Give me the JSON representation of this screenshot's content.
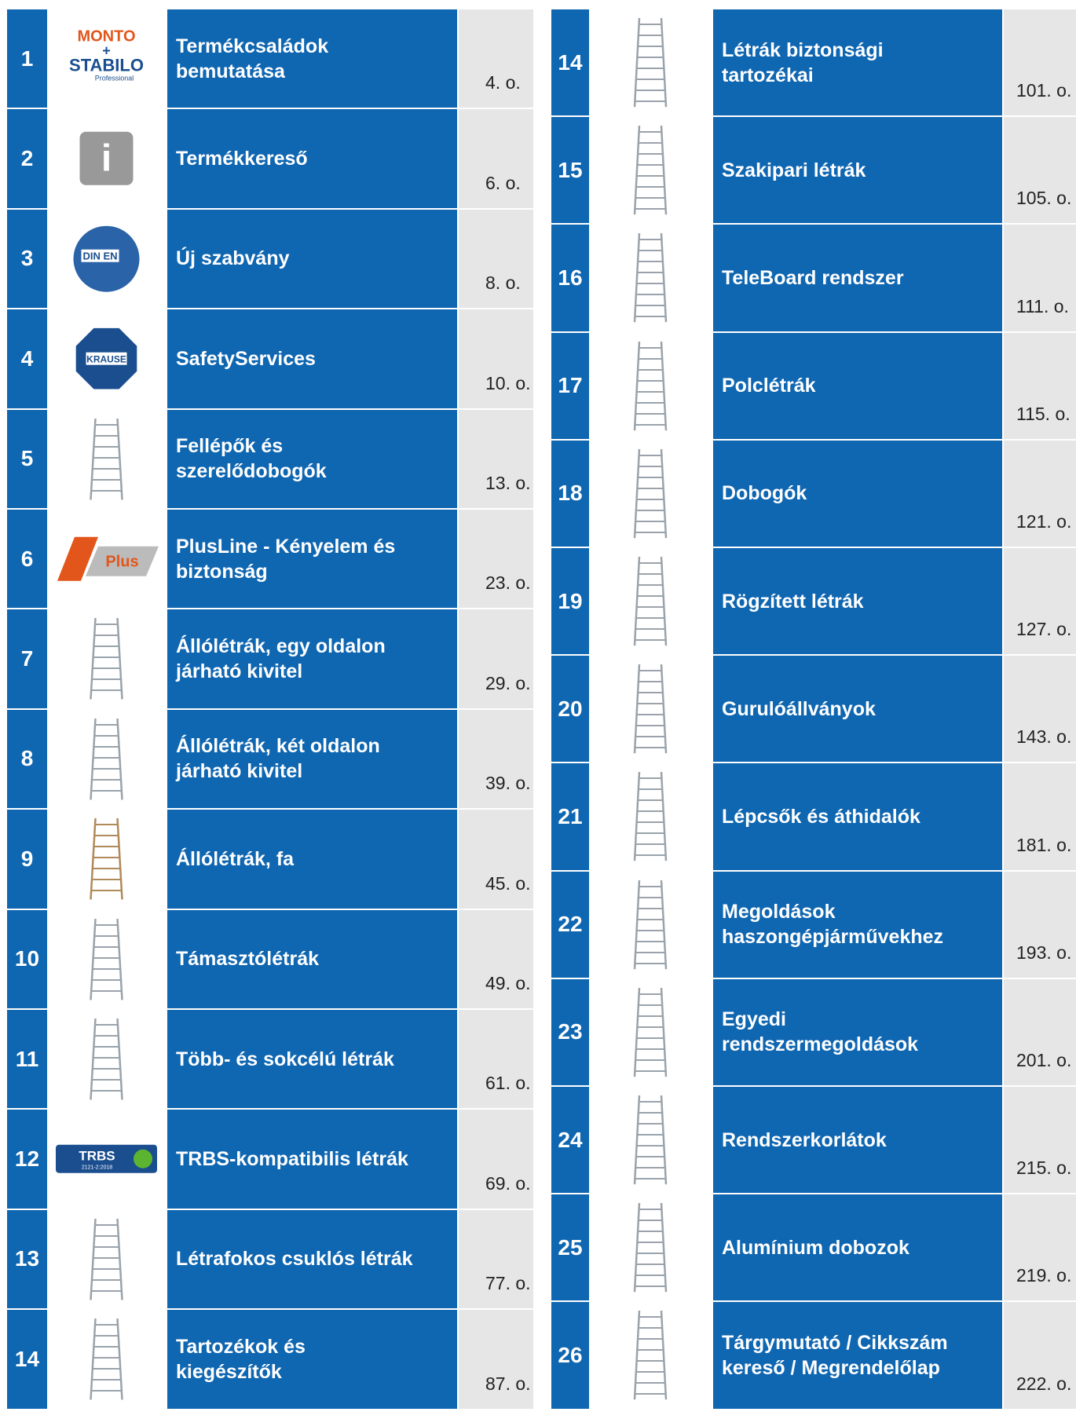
{
  "left": [
    {
      "number": "1",
      "title": [
        "Termékcsaládok",
        "bemutatása"
      ],
      "page": "4. o.",
      "logo": [
        "MONTO",
        "+",
        "STABILO",
        "Professional"
      ]
    },
    {
      "number": "2",
      "title": [
        "Termékkereső"
      ],
      "page": "6. o.",
      "logo": [
        "i"
      ]
    },
    {
      "number": "3",
      "title": [
        "Új szabvány"
      ],
      "page": "8. o.",
      "logo": [
        "DIN EN"
      ]
    },
    {
      "number": "4",
      "title": [
        "SafetyServices"
      ],
      "page": "10. o.",
      "logo": [
        "KRAUSE"
      ]
    },
    {
      "number": "5",
      "title": [
        "Fellépők és",
        "szerelődobogók"
      ],
      "page": "13. o."
    },
    {
      "number": "6",
      "title": [
        "PlusLine - Kényelem és",
        "biztonság"
      ],
      "page": "23. o.",
      "logo": [
        "Plus"
      ]
    },
    {
      "number": "7",
      "title": [
        "Állólétrák, egy oldalon",
        "járható kivitel"
      ],
      "page": "29. o."
    },
    {
      "number": "8",
      "title": [
        "Állólétrák, két oldalon",
        "járható kivitel"
      ],
      "page": "39. o."
    },
    {
      "number": "9",
      "title": [
        "Állólétrák, fa"
      ],
      "page": "45. o."
    },
    {
      "number": "10",
      "title": [
        "Támasztólétrák"
      ],
      "page": "49. o."
    },
    {
      "number": "11",
      "title": [
        "Több- és sokcélú létrák"
      ],
      "page": "61. o."
    },
    {
      "number": "12",
      "title": [
        "TRBS-kompatibilis létrák"
      ],
      "page": "69. o.",
      "logo": [
        "TRBS",
        "2121-2:2018"
      ]
    },
    {
      "number": "13",
      "title": [
        "Létrafokos csuklós létrák"
      ],
      "page": "77. o."
    },
    {
      "number": "14",
      "title": [
        "Tartozékok és",
        "kiegészítők"
      ],
      "page": "87. o."
    }
  ],
  "right": [
    {
      "number": "14",
      "title": [
        "Létrák biztonsági",
        "tartozékai"
      ],
      "page": "101. o."
    },
    {
      "number": "15",
      "title": [
        "Szakipari létrák"
      ],
      "page": "105. o."
    },
    {
      "number": "16",
      "title": [
        "TeleBoard rendszer"
      ],
      "page": "111. o."
    },
    {
      "number": "17",
      "title": [
        "Polclétrák"
      ],
      "page": "115. o."
    },
    {
      "number": "18",
      "title": [
        "Dobogók"
      ],
      "page": "121. o."
    },
    {
      "number": "19",
      "title": [
        "Rögzített létrák"
      ],
      "page": "127. o."
    },
    {
      "number": "20",
      "title": [
        "Gurulóállványok"
      ],
      "page": "143. o."
    },
    {
      "number": "21",
      "title": [
        "Lépcsők és áthidalók"
      ],
      "page": "181. o."
    },
    {
      "number": "22",
      "title": [
        "Megoldások",
        "haszongépjárművekhez"
      ],
      "page": "193. o."
    },
    {
      "number": "23",
      "title": [
        "Egyedi",
        "rendszermegoldások"
      ],
      "page": "201. o."
    },
    {
      "number": "24",
      "title": [
        "Rendszerkorlátok"
      ],
      "page": "215. o."
    },
    {
      "number": "25",
      "title": [
        "Alumínium dobozok"
      ],
      "page": "219. o."
    },
    {
      "number": "26",
      "title": [
        "Tárgymutató / Cikkszám",
        "kereső / Megrendelőlap"
      ],
      "page": "222. o."
    }
  ]
}
